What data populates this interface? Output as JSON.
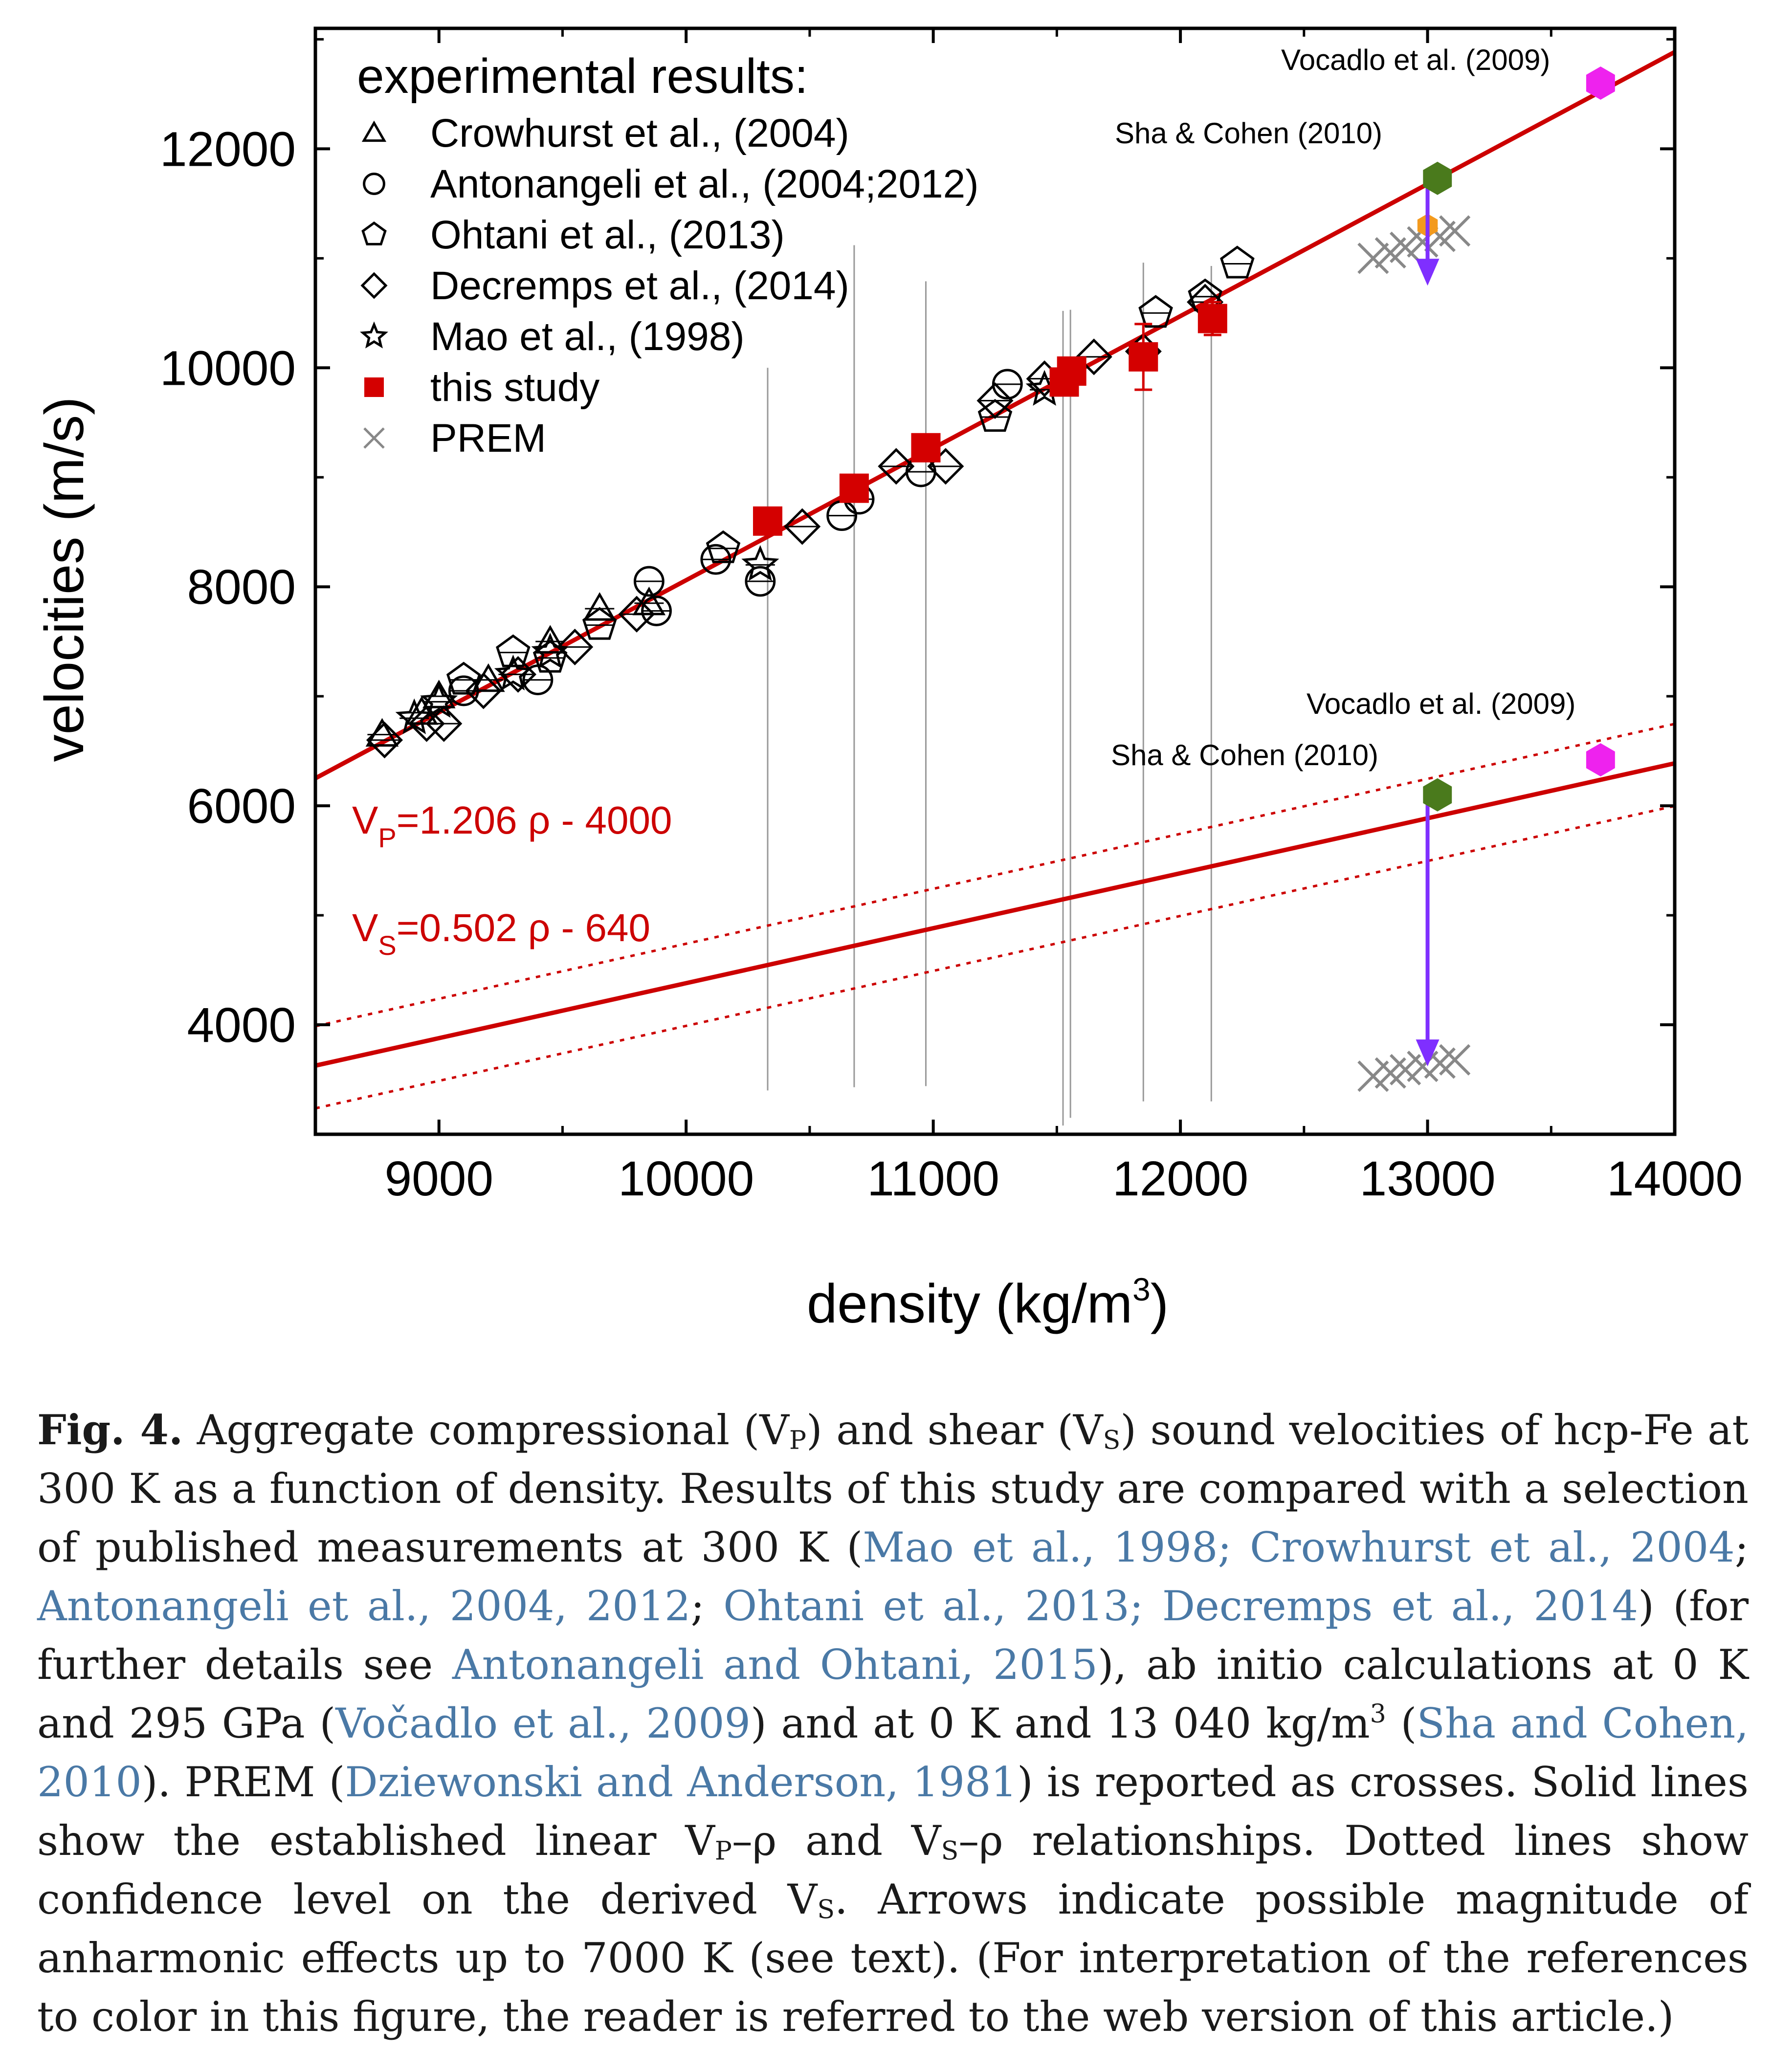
{
  "chart_data": {
    "type": "scatter",
    "xlabel": "density (kg/m",
    "xlabel_sup": "3",
    "xlabel_end": ")",
    "ylabel": "velocities (m/s)",
    "xlim": [
      8500,
      14000
    ],
    "ylim": [
      3000,
      13100
    ],
    "xticks": [
      9000,
      10000,
      11000,
      12000,
      13000,
      14000
    ],
    "yticks": [
      4000,
      6000,
      8000,
      10000,
      12000
    ],
    "grid": false,
    "legend": {
      "title": "experimental results:",
      "position": "top-left",
      "entries": [
        {
          "marker": "triangle",
          "label": "Crowhurst et al., (2004)",
          "color": "#000000"
        },
        {
          "marker": "circle",
          "label": "Antonangeli et al., (2004;2012)",
          "color": "#000000"
        },
        {
          "marker": "pentagon",
          "label": "Ohtani et al., (2013)",
          "color": "#000000"
        },
        {
          "marker": "diamond",
          "label": "Decremps et al., (2014)",
          "color": "#000000"
        },
        {
          "marker": "star",
          "label": "Mao et al., (1998)",
          "color": "#000000"
        },
        {
          "marker": "square",
          "label": "this study",
          "color": "#d40000"
        },
        {
          "marker": "cross",
          "label": "PREM",
          "color": "#888888"
        }
      ]
    },
    "fits": [
      {
        "name": "VP",
        "slope": 1.206,
        "intercept": -4000,
        "style": "solid",
        "color": "#cc0000",
        "label_main": "V",
        "label_sub": "P",
        "label_rest": "=1.206 ρ - 4000"
      },
      {
        "name": "VS",
        "slope": 0.502,
        "intercept": -640,
        "style": "solid",
        "color": "#cc0000",
        "label_main": "V",
        "label_sub": "S",
        "label_rest": "=0.502 ρ - 640"
      }
    ],
    "confidence_lines": [
      {
        "slope": 0.502,
        "intercept": -280,
        "style": "dotted"
      },
      {
        "slope": 0.502,
        "intercept": -1030,
        "style": "dotted"
      }
    ],
    "series": [
      {
        "name": "Crowhurst et al., (2004)",
        "marker": "triangle",
        "points": [
          [
            8770,
            6650
          ],
          [
            8930,
            6850
          ],
          [
            9000,
            7000
          ],
          [
            9200,
            7150
          ],
          [
            9450,
            7500
          ],
          [
            9650,
            7800
          ],
          [
            9850,
            7850
          ]
        ]
      },
      {
        "name": "Antonangeli et al., (2004;2012)",
        "marker": "circle",
        "points": [
          [
            9100,
            7050
          ],
          [
            9400,
            7150
          ],
          [
            9850,
            8050
          ],
          [
            9880,
            7780
          ],
          [
            10120,
            8250
          ],
          [
            10300,
            8050
          ],
          [
            10630,
            8650
          ],
          [
            10700,
            8800
          ],
          [
            10950,
            9050
          ],
          [
            11300,
            9850
          ]
        ]
      },
      {
        "name": "Ohtani et al., (2013)",
        "marker": "pentagon",
        "points": [
          [
            9100,
            7150
          ],
          [
            9300,
            7400
          ],
          [
            9450,
            7350
          ],
          [
            9650,
            7650
          ],
          [
            10150,
            8350
          ],
          [
            11250,
            9550
          ],
          [
            11900,
            10500
          ],
          [
            12100,
            10650
          ],
          [
            12230,
            10950
          ]
        ]
      },
      {
        "name": "Decremps et al., (2014)",
        "marker": "diamond",
        "points": [
          [
            8780,
            6600
          ],
          [
            8950,
            6750
          ],
          [
            9020,
            6750
          ],
          [
            9180,
            7050
          ],
          [
            9320,
            7200
          ],
          [
            9550,
            7450
          ],
          [
            9800,
            7750
          ],
          [
            10470,
            8550
          ],
          [
            10850,
            9100
          ],
          [
            11050,
            9100
          ],
          [
            11250,
            9700
          ],
          [
            11450,
            9900
          ],
          [
            11650,
            10100
          ],
          [
            11850,
            10150
          ],
          [
            12100,
            10600
          ]
        ]
      },
      {
        "name": "Mao et al., (1998)",
        "marker": "star",
        "points": [
          [
            8900,
            6800
          ],
          [
            9000,
            6950
          ],
          [
            9300,
            7200
          ],
          [
            9450,
            7400
          ],
          [
            10300,
            8200
          ],
          [
            11450,
            9800
          ]
        ]
      },
      {
        "name": "this study",
        "marker": "square",
        "color": "#d40000",
        "points": [
          [
            10330,
            8600
          ],
          [
            10680,
            8900
          ],
          [
            10970,
            9270
          ],
          [
            11530,
            9870
          ],
          [
            11560,
            9970
          ],
          [
            11850,
            10100
          ],
          [
            12130,
            10450
          ]
        ],
        "yerr": [
          0,
          0,
          0,
          0,
          0,
          300,
          150
        ]
      },
      {
        "name": "PREM",
        "marker": "cross",
        "color": "#888888",
        "vp_points": [
          [
            12780,
            11000
          ],
          [
            12850,
            11050
          ],
          [
            12910,
            11100
          ],
          [
            12980,
            11150
          ],
          [
            13050,
            11200
          ],
          [
            13110,
            11250
          ]
        ],
        "vs_points": [
          [
            12780,
            3530
          ],
          [
            12850,
            3560
          ],
          [
            12910,
            3590
          ],
          [
            12980,
            3620
          ],
          [
            13050,
            3650
          ],
          [
            13110,
            3680
          ]
        ]
      }
    ],
    "ab_initio": [
      {
        "name": "Vocadlo et al. (2009)",
        "color": "#ee22ee",
        "vp": [
          13700,
          12600
        ],
        "vs": [
          13700,
          6420
        ]
      },
      {
        "name": "Sha & Cohen (2010)",
        "color": "#4a7a1c",
        "vp": [
          13040,
          11730
        ],
        "vs": [
          13040,
          6100
        ]
      }
    ],
    "orange_point": [
      13000,
      11300
    ],
    "arrows": [
      {
        "x": 13000,
        "from": 11650,
        "to": 10750,
        "color": "#7f2fff"
      },
      {
        "x": 13000,
        "from": 6020,
        "to": 3620,
        "color": "#7f2fff"
      }
    ],
    "vertical_lines": [
      {
        "x": 10330,
        "y1": 3400,
        "y2": 10000
      },
      {
        "x": 10680,
        "y1": 3430,
        "y2": 11120
      },
      {
        "x": 10970,
        "y1": 3440,
        "y2": 10790
      },
      {
        "x": 11525,
        "y1": 3080,
        "y2": 10520
      },
      {
        "x": 11555,
        "y1": 3150,
        "y2": 10530
      },
      {
        "x": 11850,
        "y1": 3300,
        "y2": 10960
      },
      {
        "x": 12125,
        "y1": 3300,
        "y2": 10930
      }
    ]
  },
  "caption": {
    "label": "Fig. 4.",
    "t1": " Aggregate compressional (V",
    "s1": "P",
    "t2": ") and shear (V",
    "s2": "S",
    "t3": ") sound velocities of hcp-Fe at 300 K as a function of density. Results of this study are compared with a selection of published measurements at 300 K (",
    "r1": "Mao et al., 1998; Crowhurst et al., 2004",
    "t4": "; ",
    "r2": "Antonangeli et al., 2004, 2012",
    "t5": "; ",
    "r3": "Ohtani et al., 2013; Decremps et al., 2014",
    "t6": ") (for further details see ",
    "r4": "Antonangeli and Ohtani, 2015",
    "t7": "), ab initio calculations at 0 K and 295 GPa (",
    "r5": "Vočadlo et al., 2009",
    "t8": ") and at 0 K and 13 040 kg/m",
    "sup1": "3",
    "t9": " (",
    "r6": "Sha and Cohen, 2010",
    "t10": "). PREM (",
    "r7": "Dziewonski and Anderson, 1981",
    "t11": ") is reported as crosses. Solid lines show the established linear V",
    "s3": "P",
    "t12": "–ρ and V",
    "s4": "S",
    "t13": "–ρ relationships. Dotted lines show confidence level on the derived V",
    "s5": "S",
    "t14": ". Arrows indicate possible magnitude of anharmonic effects up to 7000 K (see text). (For interpretation of the references to color in this figure, the reader is referred to the web version of this article.)"
  }
}
